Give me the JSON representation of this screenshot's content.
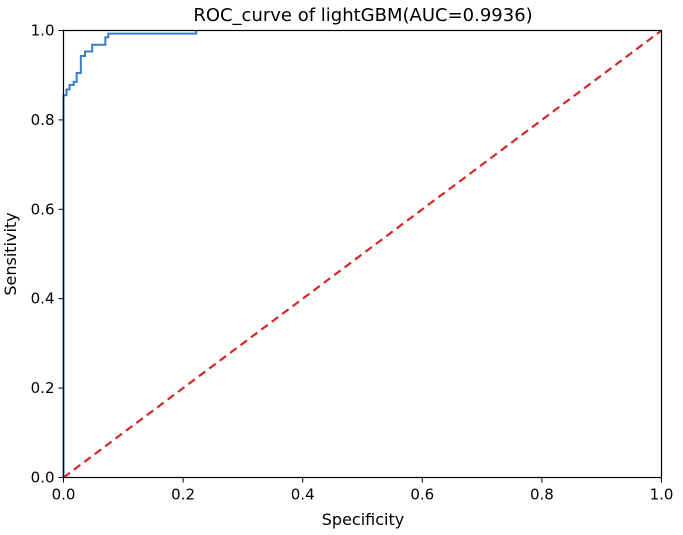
{
  "chart_data": {
    "type": "line",
    "title": "ROC_curve of lightGBM(AUC=0.9936)",
    "xlabel": "Specificity",
    "ylabel": "Sensitivity",
    "xlim": [
      0.0,
      1.0
    ],
    "ylim": [
      0.0,
      1.0
    ],
    "xticks": [
      "0.0",
      "0.2",
      "0.4",
      "0.6",
      "0.8",
      "1.0"
    ],
    "yticks": [
      "0.0",
      "0.2",
      "0.4",
      "0.6",
      "0.8",
      "1.0"
    ],
    "grid": false,
    "legend": "none",
    "series": [
      {
        "color": "#3a7dc9",
        "style": "solid",
        "step": true,
        "x": [
          0.0,
          0.0,
          0.005,
          0.005,
          0.01,
          0.01,
          0.017,
          0.017,
          0.022,
          0.022,
          0.029,
          0.029,
          0.036,
          0.036,
          0.048,
          0.048,
          0.07,
          0.07,
          0.075,
          0.075,
          0.222,
          0.222
        ],
        "y": [
          0.0,
          0.855,
          0.855,
          0.868,
          0.868,
          0.878,
          0.878,
          0.885,
          0.885,
          0.905,
          0.905,
          0.943,
          0.943,
          0.953,
          0.953,
          0.968,
          0.968,
          0.985,
          0.985,
          0.993,
          0.993,
          1.0
        ]
      },
      {
        "color": "#d62728",
        "style": "dashed",
        "step": false,
        "x": [
          0.0,
          1.0
        ],
        "y": [
          0.0,
          1.0
        ]
      }
    ]
  }
}
